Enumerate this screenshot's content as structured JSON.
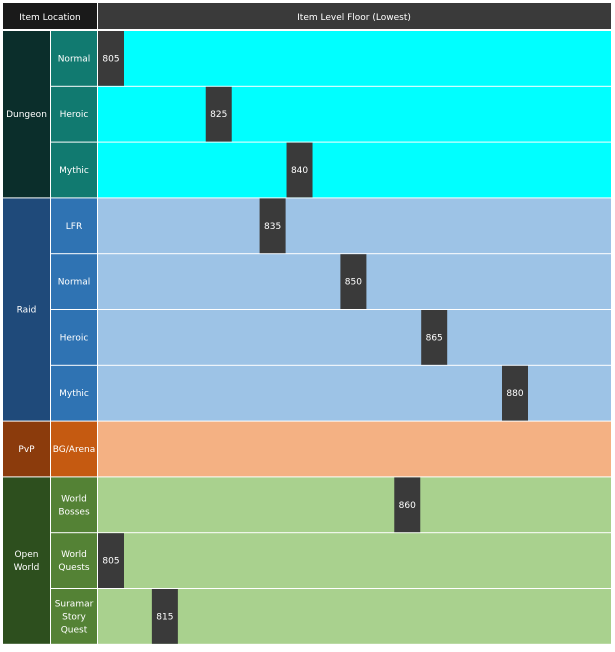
{
  "header": {
    "left": "Item Location",
    "right": "Item Level Floor (Lowest)"
  },
  "colors": {
    "dungeon_group": "#0b2e2b",
    "dungeon_sub": "#117a70",
    "dungeon_band": "#00ffff",
    "raid_group": "#1f4a7a",
    "raid_sub": "#2f73b3",
    "raid_band": "#9dc3e6",
    "pvp_group": "#8b3b0c",
    "pvp_sub": "#c55a11",
    "pvp_band": "#f4b183",
    "world_group": "#2d4f1e",
    "world_sub": "#548235",
    "world_band": "#a9d18e",
    "marker": "#3a3a3a",
    "header_bg": "#3a3a3a"
  },
  "chart_data": {
    "type": "bar",
    "title": "Item Level Floor (Lowest)",
    "xlim": [
      805,
      880
    ],
    "groups": [
      {
        "name": "Dungeon",
        "color_key": "dungeon",
        "rows": [
          {
            "label": "Normal",
            "value": 805
          },
          {
            "label": "Heroic",
            "value": 825
          },
          {
            "label": "Mythic",
            "value": 840
          }
        ]
      },
      {
        "name": "Raid",
        "color_key": "raid",
        "rows": [
          {
            "label": "LFR",
            "value": 835
          },
          {
            "label": "Normal",
            "value": 850
          },
          {
            "label": "Heroic",
            "value": 865
          },
          {
            "label": "Mythic",
            "value": 880
          }
        ]
      },
      {
        "name": "PvP",
        "color_key": "pvp",
        "rows": [
          {
            "label": "BG/Arena",
            "value": null
          }
        ]
      },
      {
        "name": "Open\nWorld",
        "color_key": "world",
        "rows": [
          {
            "label": "World\nBosses",
            "value": 860
          },
          {
            "label": "World\nQuests",
            "value": 805
          },
          {
            "label": "Suramar\nStory\nQuest",
            "value": 815
          }
        ]
      }
    ]
  }
}
